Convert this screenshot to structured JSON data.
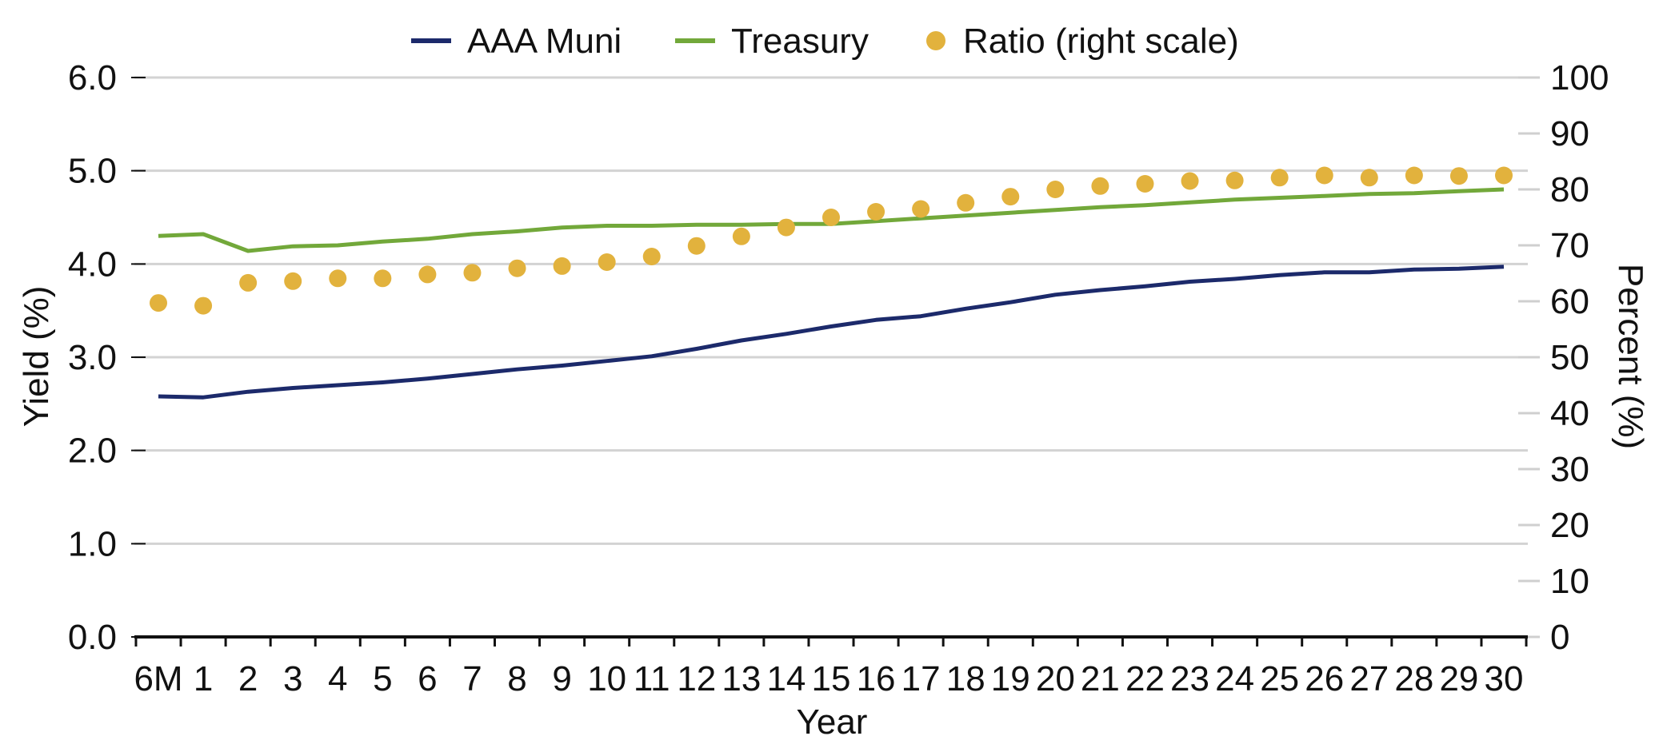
{
  "chart_data": {
    "type": "line",
    "xlabel": "Year",
    "ylabel_left": "Yield (%)",
    "ylabel_right": "Percent (%)",
    "categories": [
      "6M",
      "1",
      "2",
      "3",
      "4",
      "5",
      "6",
      "7",
      "8",
      "9",
      "10",
      "11",
      "12",
      "13",
      "14",
      "15",
      "16",
      "17",
      "18",
      "19",
      "20",
      "21",
      "22",
      "23",
      "24",
      "25",
      "26",
      "27",
      "28",
      "29",
      "30"
    ],
    "y_left": {
      "min": 0,
      "max": 6,
      "ticks": [
        "0.0",
        "1.0",
        "2.0",
        "3.0",
        "4.0",
        "5.0",
        "6.0"
      ]
    },
    "y_right": {
      "min": 0,
      "max": 100,
      "ticks": [
        "0",
        "10",
        "20",
        "30",
        "40",
        "50",
        "60",
        "70",
        "80",
        "90",
        "100"
      ]
    },
    "grid": "horizontal",
    "legend_position": "top",
    "series": [
      {
        "name": "AAA Muni",
        "kind": "line",
        "axis": "left",
        "color": "#1c2a6b",
        "values": [
          2.58,
          2.57,
          2.63,
          2.67,
          2.7,
          2.73,
          2.77,
          2.82,
          2.87,
          2.91,
          2.96,
          3.01,
          3.09,
          3.18,
          3.25,
          3.33,
          3.4,
          3.44,
          3.52,
          3.59,
          3.67,
          3.72,
          3.76,
          3.81,
          3.84,
          3.88,
          3.91,
          3.91,
          3.94,
          3.95,
          3.97
        ]
      },
      {
        "name": "Treasury",
        "kind": "line",
        "axis": "left",
        "color": "#72a83a",
        "values": [
          4.3,
          4.32,
          4.14,
          4.19,
          4.2,
          4.24,
          4.27,
          4.32,
          4.35,
          4.39,
          4.41,
          4.41,
          4.42,
          4.42,
          4.43,
          4.43,
          4.46,
          4.49,
          4.52,
          4.55,
          4.58,
          4.61,
          4.63,
          4.66,
          4.69,
          4.71,
          4.73,
          4.75,
          4.76,
          4.78,
          4.8
        ]
      },
      {
        "name": "Ratio (right scale)",
        "kind": "dots",
        "axis": "right",
        "color": "#e2b23d",
        "values": [
          59.7,
          59.2,
          63.3,
          63.6,
          64.1,
          64.1,
          64.8,
          65.1,
          65.9,
          66.3,
          67.0,
          68.0,
          69.9,
          71.6,
          73.2,
          75.0,
          76.0,
          76.5,
          77.6,
          78.7,
          80.0,
          80.6,
          81.0,
          81.5,
          81.6,
          82.1,
          82.5,
          82.1,
          82.5,
          82.4,
          82.5
        ]
      }
    ]
  }
}
